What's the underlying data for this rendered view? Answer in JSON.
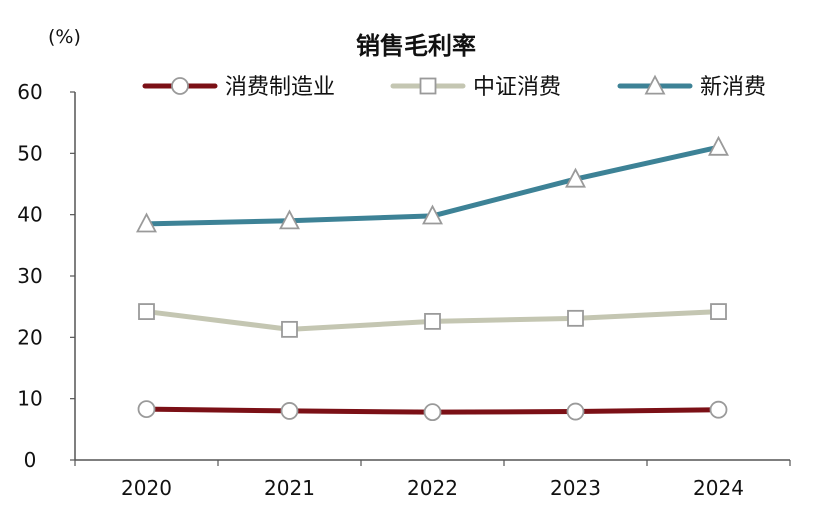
{
  "chart_data": {
    "type": "line",
    "title": "销售毛利率",
    "unit_label": "(%)",
    "categories": [
      "2020",
      "2021",
      "2022",
      "2023",
      "2024"
    ],
    "ylim": [
      0,
      60
    ],
    "yticks": [
      "0",
      "10",
      "20",
      "30",
      "40",
      "50",
      "60"
    ],
    "grid": false,
    "legend_position": "top",
    "series": [
      {
        "name": "消费制造业",
        "values": [
          8.3,
          8.0,
          7.8,
          7.9,
          8.2
        ],
        "color": "#7b1016",
        "marker": "circle"
      },
      {
        "name": "中证消费",
        "values": [
          24.2,
          21.3,
          22.6,
          23.1,
          24.2
        ],
        "color": "#c4c6b2",
        "marker": "square"
      },
      {
        "name": "新消费",
        "values": [
          38.5,
          39.0,
          39.8,
          45.8,
          51.0
        ],
        "color": "#3d8296",
        "marker": "triangle"
      }
    ]
  }
}
